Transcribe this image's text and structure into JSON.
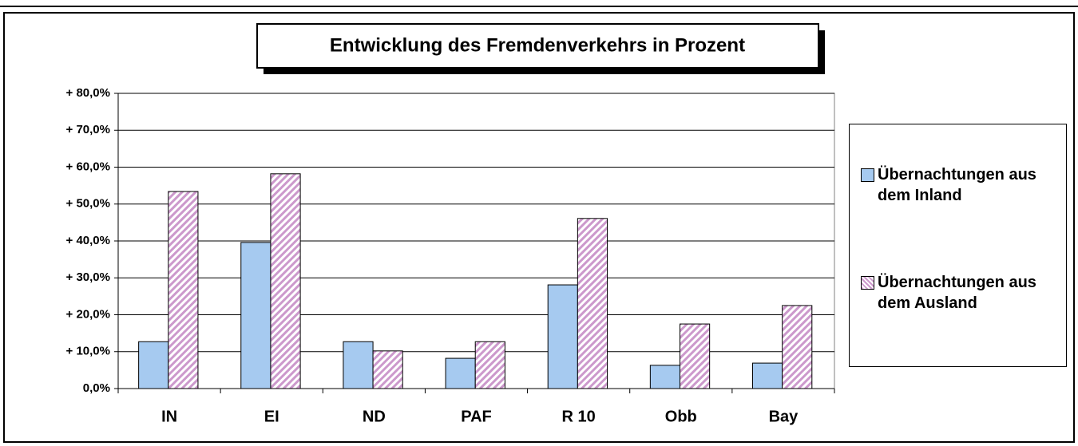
{
  "chart_data": {
    "type": "bar",
    "title": "Entwicklung des Fremdenverkehrs in Prozent",
    "categories": [
      "IN",
      "EI",
      "ND",
      "PAF",
      "R 10",
      "Obb",
      "Bay"
    ],
    "series": [
      {
        "name": "Übernachtungen aus dem Inland",
        "color": "#a6caf0",
        "values": [
          12.7,
          39.6,
          12.7,
          8.2,
          28.1,
          6.3,
          6.9
        ]
      },
      {
        "name": "Übernachtungen aus dem Ausland",
        "color": "#cc99cc",
        "values": [
          53.4,
          58.2,
          10.2,
          12.7,
          46.1,
          17.5,
          22.5
        ]
      }
    ],
    "ylim": [
      0,
      80
    ],
    "yticks": [
      {
        "value": 0,
        "label": "0,0%"
      },
      {
        "value": 10,
        "label": "+ 10,0%"
      },
      {
        "value": 20,
        "label": "+ 20,0%"
      },
      {
        "value": 30,
        "label": "+ 30,0%"
      },
      {
        "value": 40,
        "label": "+ 40,0%"
      },
      {
        "value": 50,
        "label": "+ 50,0%"
      },
      {
        "value": 60,
        "label": "+ 60,0%"
      },
      {
        "value": 70,
        "label": "+ 70,0%"
      },
      {
        "value": 80,
        "label": "+ 80,0%"
      }
    ],
    "grid": true
  }
}
